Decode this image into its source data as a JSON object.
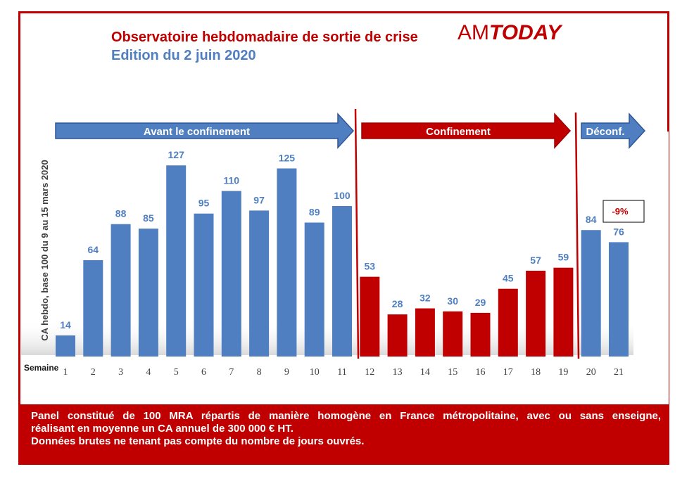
{
  "header": {
    "title": "Observatoire hebdomadaire de sortie de crise",
    "subtitle": "Edition du 2 juin 2020",
    "logo_am": "AM",
    "logo_today": "TODAY"
  },
  "colors": {
    "blue": "#4f7fc0",
    "red": "#c00000"
  },
  "chart_data": {
    "type": "bar",
    "ylabel": "CA hebdo, base 100 du 9 au 15 mars 2020",
    "xlabel": "Semaine",
    "categories": [
      "1",
      "2",
      "3",
      "4",
      "5",
      "6",
      "7",
      "8",
      "9",
      "10",
      "11",
      "12",
      "13",
      "14",
      "15",
      "16",
      "17",
      "18",
      "19",
      "20",
      "21"
    ],
    "values": [
      14,
      64,
      88,
      85,
      127,
      95,
      110,
      97,
      125,
      89,
      100,
      53,
      28,
      32,
      30,
      29,
      45,
      57,
      59,
      84,
      76
    ],
    "phase": [
      "avant",
      "avant",
      "avant",
      "avant",
      "avant",
      "avant",
      "avant",
      "avant",
      "avant",
      "avant",
      "avant",
      "conf",
      "conf",
      "conf",
      "conf",
      "conf",
      "conf",
      "conf",
      "conf",
      "deconf",
      "deconf"
    ],
    "phases": [
      {
        "key": "avant",
        "label": "Avant le confinement",
        "color": "#4f7fc0"
      },
      {
        "key": "conf",
        "label": "Confinement",
        "color": "#c00000"
      },
      {
        "key": "deconf",
        "label": "Déconf.",
        "color": "#4f7fc0"
      }
    ],
    "annotation": "-9%",
    "ylim": [
      0,
      140
    ],
    "grid": false
  },
  "footer": {
    "line1": "Panel constitué de 100 MRA répartis de manière homogène en France métropolitaine, avec ou sans enseigne,",
    "line2": "réalisant en moyenne un CA annuel de 300 000 € HT.",
    "line3": "Données brutes ne tenant pas compte du nombre de jours ouvrés."
  }
}
